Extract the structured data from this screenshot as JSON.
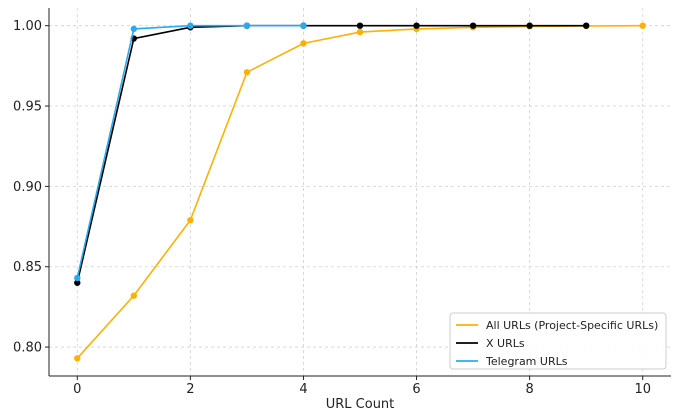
{
  "chart_data": {
    "type": "line",
    "title": "",
    "xlabel": "URL Count",
    "ylabel": "",
    "xlim": [
      -0.5,
      10.5
    ],
    "ylim": [
      0.782,
      1.011
    ],
    "grid": true,
    "legend_position": "bottom-right",
    "x_ticks": [
      0,
      2,
      4,
      6,
      8,
      10
    ],
    "x_tick_labels": [
      "0",
      "2",
      "4",
      "6",
      "8",
      "10"
    ],
    "y_ticks": [
      0.8,
      0.85,
      0.9,
      0.95,
      1.0
    ],
    "y_tick_labels": [
      "0.80",
      "0.85",
      "0.90",
      "0.95",
      "1.00"
    ],
    "series": [
      {
        "name": "All URLs (Project-Specific URLs)",
        "color": "#FFB000",
        "x": [
          0,
          1,
          2,
          3,
          4,
          5,
          6,
          7,
          8,
          9,
          10
        ],
        "values": [
          0.793,
          0.832,
          0.879,
          0.971,
          0.989,
          0.996,
          0.998,
          0.999,
          0.9995,
          0.9998,
          1.0
        ]
      },
      {
        "name": "X URLs",
        "color": "#000000",
        "x": [
          0,
          1,
          2,
          3,
          4,
          5,
          6,
          7,
          8,
          9
        ],
        "values": [
          0.84,
          0.992,
          0.999,
          1.0,
          1.0,
          1.0,
          1.0,
          1.0,
          1.0,
          1.0
        ]
      },
      {
        "name": "Telegram URLs",
        "color": "#2AABEE",
        "x": [
          0,
          1,
          2,
          3,
          4
        ],
        "values": [
          0.843,
          0.998,
          1.0,
          1.0,
          1.0
        ]
      }
    ]
  }
}
